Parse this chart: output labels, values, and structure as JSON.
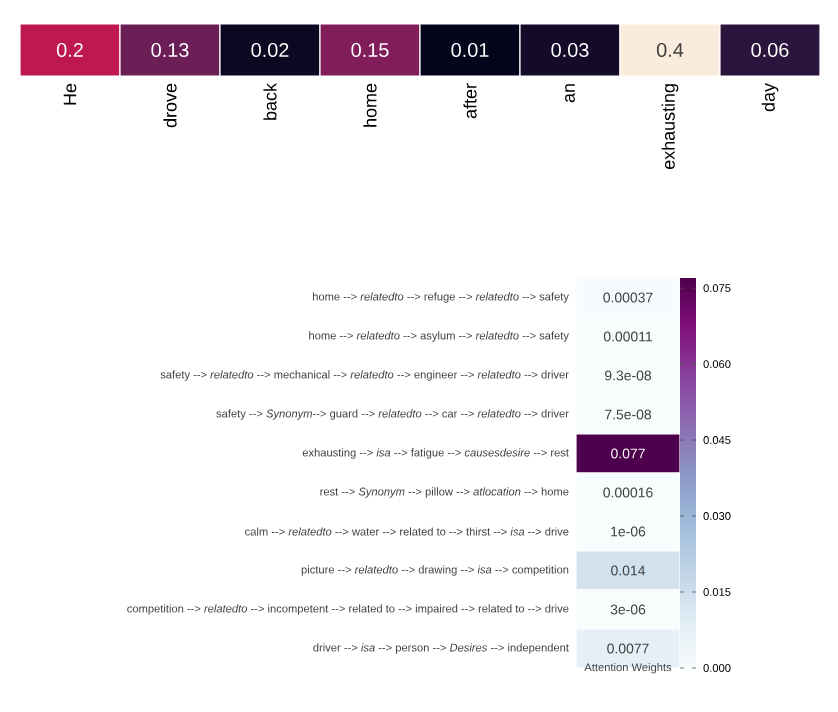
{
  "chart_data": [
    {
      "type": "heatmap",
      "y_categories": [
        null
      ],
      "categories": [
        "He",
        "drove",
        "back",
        "home",
        "after",
        "an",
        "exhausting",
        "day"
      ],
      "cells": [
        [
          0.2,
          0.13,
          0.02,
          0.15,
          0.01,
          0.03,
          0.4,
          0.06
        ]
      ],
      "cell_labels": [
        [
          "0.2",
          "0.13",
          "0.02",
          "0.15",
          "0.01",
          "0.03",
          "0.4",
          "0.06"
        ]
      ]
    },
    {
      "type": "heatmap",
      "categories": [
        null
      ],
      "xlabel": "Attention Weights",
      "y_categories": [
        "home --> *relatedto* --> refuge --> *relatedto* --> safety",
        "home --> *relatedto* --> asylum --> *relatedto* --> safety",
        "safety --> *relatedto* --> mechanical --> *relatedto* --> engineer --> *relatedto* --> driver",
        "safety --> *Synonym*--> guard --> *relatedto* --> car --> *relatedto* --> driver",
        "exhausting --> *isa* --> fatigue --> *causesdesire* --> rest",
        "rest --> *Synonym* --> pillow --> *atlocation* --> home",
        "calm --> *relatedto* --> water --> related to --> thirst --> *isa* --> drive",
        "picture --> *relatedto* --> drawing --> *isa* --> competition",
        "competition --> *relatedto* --> incompetent --> related to --> impaired --> related to --> drive",
        "driver --> *isa* --> person --> *Desires* --> independent"
      ],
      "cells": [
        [
          0.00037
        ],
        [
          0.00011
        ],
        [
          9.3e-08
        ],
        [
          7.5e-08
        ],
        [
          0.077
        ],
        [
          0.00016
        ],
        [
          1e-06
        ],
        [
          0.014
        ],
        [
          3e-06
        ],
        [
          0.0077
        ]
      ],
      "cell_labels": [
        [
          "0.00037"
        ],
        [
          "0.00011"
        ],
        [
          "9.3e-08"
        ],
        [
          "7.5e-08"
        ],
        [
          "0.077"
        ],
        [
          "0.00016"
        ],
        [
          "1e-06"
        ],
        [
          "0.014"
        ],
        [
          "3e-06"
        ],
        [
          "0.0077"
        ]
      ],
      "clim": [
        0,
        0.077
      ],
      "cticks": [
        {
          "value": 0,
          "label": "0.000"
        },
        {
          "value": 0.015,
          "label": "0.015"
        },
        {
          "value": 0.03,
          "label": "0.030"
        },
        {
          "value": 0.045,
          "label": "0.045"
        },
        {
          "value": 0.06,
          "label": "0.060"
        },
        {
          "value": 0.075,
          "label": "0.075"
        }
      ]
    }
  ]
}
